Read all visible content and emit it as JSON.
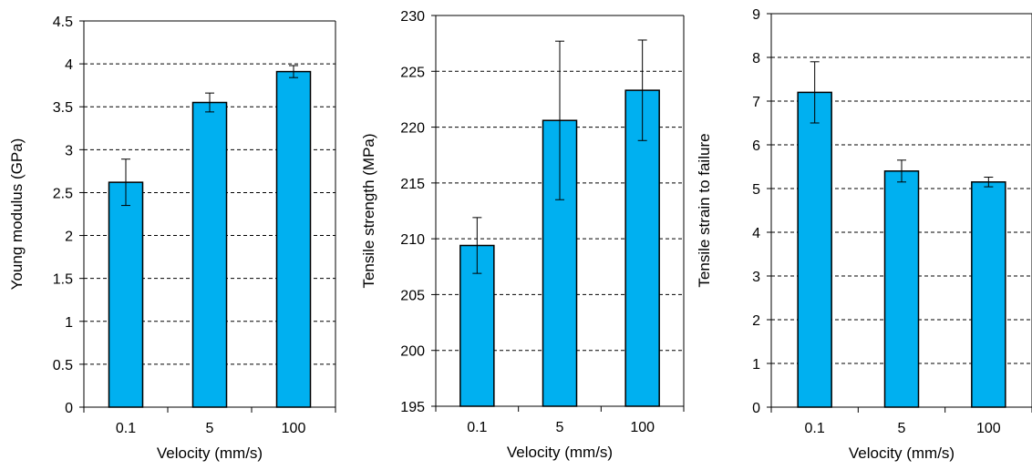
{
  "chart_data": [
    {
      "type": "bar",
      "categories": [
        "0.1",
        "5",
        "100"
      ],
      "values": [
        2.62,
        3.55,
        3.91
      ],
      "errors": [
        0.27,
        0.11,
        0.07
      ],
      "xlabel": "Velocity (mm/s)",
      "ylabel": "Young modulus (GPa)",
      "ylim": [
        0,
        4.5
      ],
      "yticks": [
        0,
        0.5,
        1,
        1.5,
        2,
        2.5,
        3,
        3.5,
        4,
        4.5
      ],
      "ytick_labels": [
        "0",
        "0.5",
        "1",
        "1.5",
        "2",
        "2.5",
        "3",
        "3.5",
        "4",
        "4.5"
      ],
      "grid": "horizontal dashed",
      "bar_color": "#00B0F0"
    },
    {
      "type": "bar",
      "categories": [
        "0.1",
        "5",
        "100"
      ],
      "values": [
        209.4,
        220.6,
        223.3
      ],
      "errors": [
        2.5,
        7.1,
        4.5
      ],
      "xlabel": "Velocity (mm/s)",
      "ylabel": "Tensile strength (MPa)",
      "ylim": [
        195,
        230
      ],
      "yticks": [
        195,
        200,
        205,
        210,
        215,
        220,
        225,
        230
      ],
      "ytick_labels": [
        "195",
        "200",
        "205",
        "210",
        "215",
        "220",
        "225",
        "230"
      ],
      "grid": "horizontal dashed",
      "bar_color": "#00B0F0"
    },
    {
      "type": "bar",
      "categories": [
        "0.1",
        "5",
        "100"
      ],
      "values": [
        7.2,
        5.4,
        5.15
      ],
      "errors": [
        0.7,
        0.25,
        0.11
      ],
      "xlabel": "Velocity (mm/s)",
      "ylabel": "Tensile strain to failure",
      "ylim": [
        0,
        9
      ],
      "yticks": [
        0,
        1,
        2,
        3,
        4,
        5,
        6,
        7,
        8,
        9
      ],
      "ytick_labels": [
        "0",
        "1",
        "2",
        "3",
        "4",
        "5",
        "6",
        "7",
        "8",
        "9"
      ],
      "grid": "horizontal dashed",
      "bar_color": "#00B0F0"
    }
  ]
}
